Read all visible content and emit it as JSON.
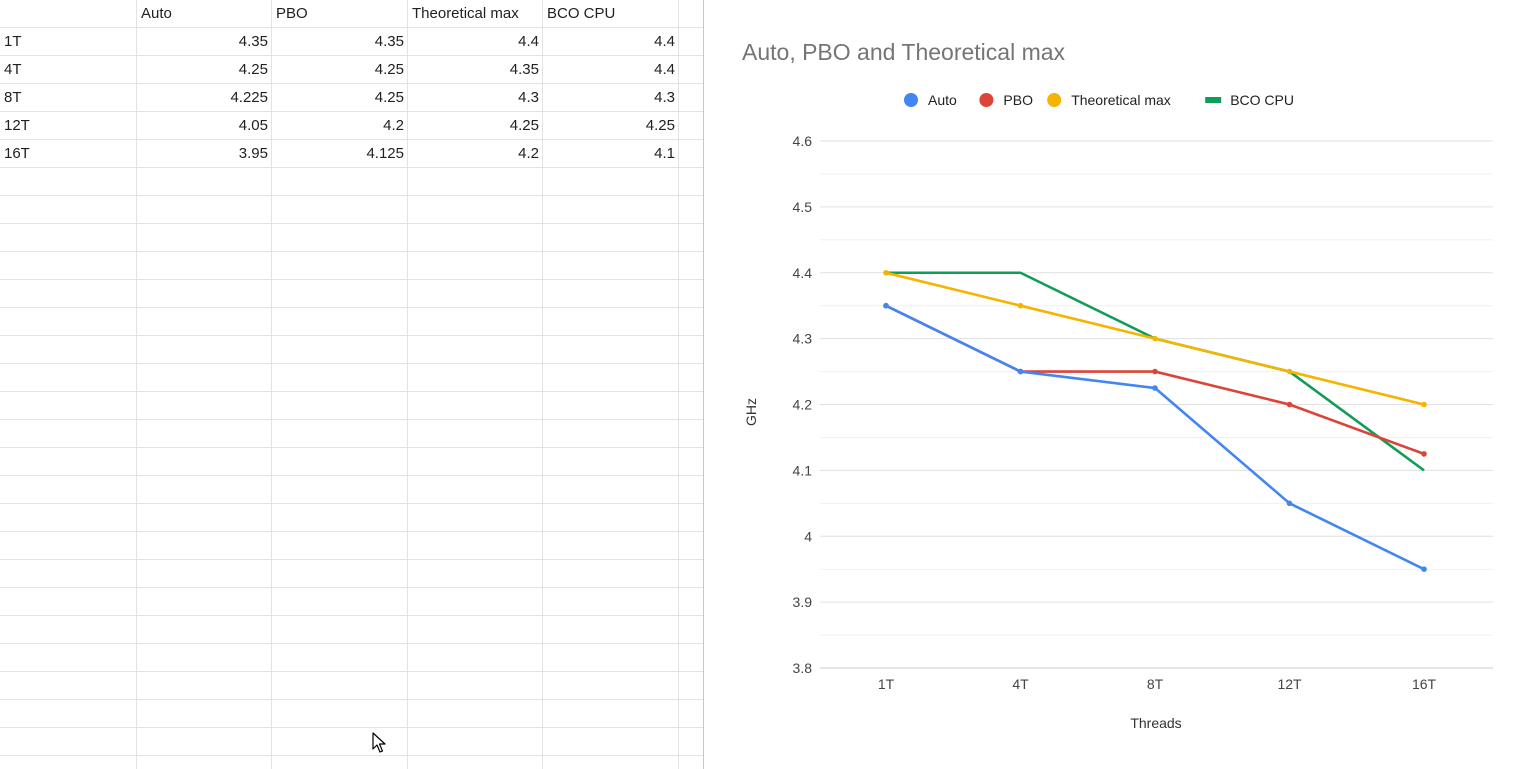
{
  "sheet": {
    "headers": [
      "",
      "Auto",
      "PBO",
      "Theoretical max",
      "BCO CPU"
    ],
    "rows": [
      [
        "1T",
        "4.35",
        "4.35",
        "4.4",
        "4.4"
      ],
      [
        "4T",
        "4.25",
        "4.25",
        "4.35",
        "4.4"
      ],
      [
        "8T",
        "4.225",
        "4.25",
        "4.3",
        "4.3"
      ],
      [
        "12T",
        "4.05",
        "4.2",
        "4.25",
        "4.25"
      ],
      [
        "16T",
        "3.95",
        "4.125",
        "4.2",
        "4.1"
      ]
    ]
  },
  "chart_data": {
    "type": "line",
    "title": "Auto, PBO and Theoretical max",
    "xlabel": "Threads",
    "ylabel": "GHz",
    "categories": [
      "1T",
      "4T",
      "8T",
      "12T",
      "16T"
    ],
    "ylim": [
      3.8,
      4.6
    ],
    "yticks": [
      "3.8",
      "3.9",
      "4",
      "4.1",
      "4.2",
      "4.3",
      "4.4",
      "4.5",
      "4.6"
    ],
    "grid": true,
    "legend_position": "top",
    "series": [
      {
        "name": "Auto",
        "color": "#4285f4",
        "values": [
          4.35,
          4.25,
          4.225,
          4.05,
          3.95
        ],
        "legend_marker": "circle"
      },
      {
        "name": "PBO",
        "color": "#db4437",
        "values": [
          4.35,
          4.25,
          4.25,
          4.2,
          4.125
        ],
        "legend_marker": "circle"
      },
      {
        "name": "Theoretical max",
        "color": "#f4b400",
        "values": [
          4.4,
          4.35,
          4.3,
          4.25,
          4.2
        ],
        "legend_marker": "circle"
      },
      {
        "name": "BCO CPU",
        "color": "#0f9d58",
        "values": [
          4.4,
          4.4,
          4.3,
          4.25,
          4.1
        ],
        "legend_marker": "line"
      }
    ]
  }
}
